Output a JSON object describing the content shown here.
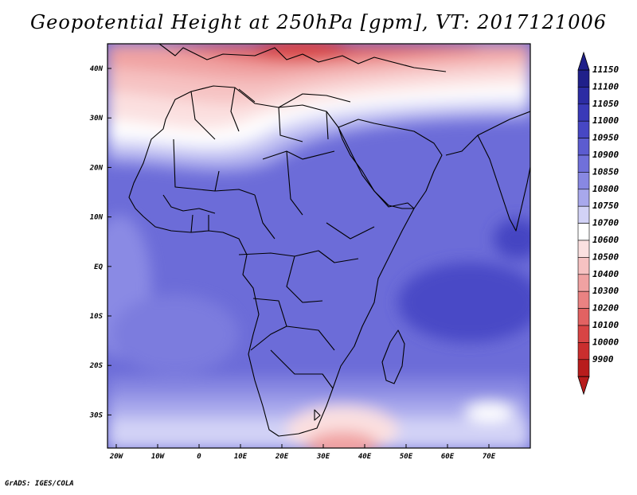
{
  "title": "Geopotential Height at 250hPa [gpm], VT: 2017121006",
  "footer": "GrADS: IGES/COLA",
  "map": {
    "lat_labels": [
      "40N",
      "30N",
      "20N",
      "10N",
      "EQ",
      "10S",
      "20S",
      "30S"
    ],
    "lon_labels": [
      "20W",
      "10W",
      "0",
      "10E",
      "20E",
      "30E",
      "40E",
      "50E",
      "60E",
      "70E"
    ]
  },
  "colorbar": {
    "levels": [
      "11150",
      "11100",
      "11050",
      "11000",
      "10950",
      "10900",
      "10850",
      "10800",
      "10750",
      "10700",
      "10600",
      "10500",
      "10400",
      "10300",
      "10200",
      "10100",
      "10000",
      "9900"
    ],
    "colors": [
      "#20208a",
      "#2c2ca3",
      "#3a3ab8",
      "#4747c4",
      "#5c5cd0",
      "#7070da",
      "#8888e2",
      "#a8a8ec",
      "#d2d2f6",
      "#ffffff",
      "#fbe0e0",
      "#f6c2c2",
      "#f0a2a2",
      "#ea8282",
      "#e26262",
      "#d84444",
      "#ca2e2e",
      "#b81c1c"
    ]
  }
}
